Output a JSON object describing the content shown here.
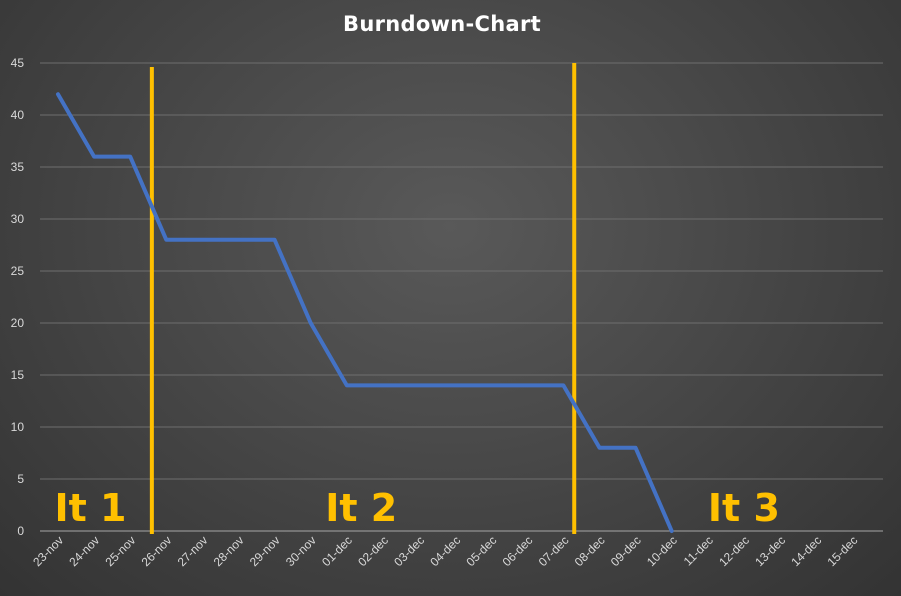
{
  "chart_data": {
    "type": "line",
    "title": "Burndown-Chart",
    "xlabel": "",
    "ylabel": "",
    "ylim": [
      0,
      45
    ],
    "yticks": [
      0,
      5,
      10,
      15,
      20,
      25,
      30,
      35,
      40,
      45
    ],
    "grid": true,
    "legend": "none",
    "categories": [
      "23-nov",
      "24-nov",
      "25-nov",
      "26-nov",
      "27-nov",
      "28-nov",
      "29-nov",
      "30-nov",
      "01-dec",
      "02-dec",
      "03-dec",
      "04-dec",
      "05-dec",
      "06-dec",
      "07-dec",
      "08-dec",
      "09-dec",
      "10-dec",
      "11-dec",
      "12-dec",
      "13-dec",
      "14-dec",
      "15-dec"
    ],
    "series": [
      {
        "color": "#4472c4",
        "values": [
          42,
          36,
          36,
          28,
          28,
          28,
          28,
          20,
          14,
          14,
          14,
          14,
          14,
          14,
          14,
          8,
          8,
          0,
          null,
          null,
          null,
          null,
          null
        ]
      }
    ],
    "iteration_markers": [
      {
        "position": 2.6,
        "color": "#ffc000"
      },
      {
        "position": 14.3,
        "color": "#ffc000"
      }
    ],
    "annotations": [
      {
        "text": "It 1",
        "at_category": 0.9,
        "color": "#ffc000"
      },
      {
        "text": "It 2",
        "at_category": 8.4,
        "color": "#ffc000"
      },
      {
        "text": "It 3",
        "at_category": 19.0,
        "color": "#ffc000"
      }
    ],
    "colors": {
      "line": "#4472c4",
      "marker": "#ffc000",
      "grid": "#6e6e6e",
      "axis": "#a6a6a6",
      "text": "#d9d9d9",
      "title": "#ffffff"
    }
  }
}
